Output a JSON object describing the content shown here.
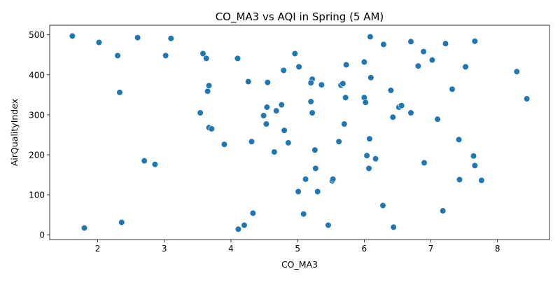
{
  "chart_data": {
    "type": "scatter",
    "title": "CO_MA3 vs AQI in Spring (5 AM)",
    "xlabel": "CO_MA3",
    "ylabel": "AirQualityIndex",
    "xlim": [
      1.28,
      8.78
    ],
    "ylim": [
      -12,
      524
    ],
    "xticks": [
      2,
      3,
      4,
      5,
      6,
      7,
      8
    ],
    "yticks": [
      0,
      100,
      200,
      300,
      400,
      500
    ],
    "grid": false,
    "legend": "none",
    "marker_color": "#1f77b4",
    "marker_edge_color": "#ffffff",
    "points": [
      {
        "x": 1.62,
        "y": 497
      },
      {
        "x": 2.02,
        "y": 481
      },
      {
        "x": 2.3,
        "y": 448
      },
      {
        "x": 2.33,
        "y": 356
      },
      {
        "x": 2.6,
        "y": 493
      },
      {
        "x": 3.02,
        "y": 448
      },
      {
        "x": 3.1,
        "y": 491
      },
      {
        "x": 3.58,
        "y": 453
      },
      {
        "x": 3.63,
        "y": 441
      },
      {
        "x": 3.65,
        "y": 359
      },
      {
        "x": 3.67,
        "y": 373
      },
      {
        "x": 3.54,
        "y": 305
      },
      {
        "x": 3.67,
        "y": 268
      },
      {
        "x": 3.71,
        "y": 265
      },
      {
        "x": 3.9,
        "y": 226
      },
      {
        "x": 2.7,
        "y": 185
      },
      {
        "x": 2.86,
        "y": 176
      },
      {
        "x": 1.8,
        "y": 17
      },
      {
        "x": 2.36,
        "y": 31
      },
      {
        "x": 4.1,
        "y": 441
      },
      {
        "x": 4.26,
        "y": 383
      },
      {
        "x": 4.55,
        "y": 381
      },
      {
        "x": 4.79,
        "y": 411
      },
      {
        "x": 4.96,
        "y": 453
      },
      {
        "x": 5.02,
        "y": 420
      },
      {
        "x": 5.22,
        "y": 389
      },
      {
        "x": 5.2,
        "y": 380
      },
      {
        "x": 5.36,
        "y": 375
      },
      {
        "x": 4.54,
        "y": 319
      },
      {
        "x": 4.76,
        "y": 325
      },
      {
        "x": 4.68,
        "y": 310
      },
      {
        "x": 4.49,
        "y": 298
      },
      {
        "x": 4.53,
        "y": 277
      },
      {
        "x": 4.8,
        "y": 261
      },
      {
        "x": 4.86,
        "y": 230
      },
      {
        "x": 4.31,
        "y": 233
      },
      {
        "x": 4.65,
        "y": 207
      },
      {
        "x": 5.2,
        "y": 333
      },
      {
        "x": 5.22,
        "y": 305
      },
      {
        "x": 5.26,
        "y": 212
      },
      {
        "x": 5.27,
        "y": 166
      },
      {
        "x": 5.12,
        "y": 139
      },
      {
        "x": 5.01,
        "y": 108
      },
      {
        "x": 5.3,
        "y": 108
      },
      {
        "x": 5.09,
        "y": 52
      },
      {
        "x": 4.33,
        "y": 54
      },
      {
        "x": 4.2,
        "y": 24
      },
      {
        "x": 4.11,
        "y": 14
      },
      {
        "x": 5.46,
        "y": 24
      },
      {
        "x": 5.52,
        "y": 135
      },
      {
        "x": 5.53,
        "y": 139
      },
      {
        "x": 5.62,
        "y": 233
      },
      {
        "x": 5.65,
        "y": 374
      },
      {
        "x": 5.68,
        "y": 378
      },
      {
        "x": 5.72,
        "y": 343
      },
      {
        "x": 5.73,
        "y": 425
      },
      {
        "x": 5.7,
        "y": 277
      },
      {
        "x": 6.09,
        "y": 495
      },
      {
        "x": 6.29,
        "y": 476
      },
      {
        "x": 6.0,
        "y": 432
      },
      {
        "x": 6.1,
        "y": 393
      },
      {
        "x": 6.0,
        "y": 343
      },
      {
        "x": 6.02,
        "y": 331
      },
      {
        "x": 6.4,
        "y": 361
      },
      {
        "x": 6.43,
        "y": 294
      },
      {
        "x": 6.52,
        "y": 319
      },
      {
        "x": 6.56,
        "y": 323
      },
      {
        "x": 6.08,
        "y": 240
      },
      {
        "x": 6.04,
        "y": 198
      },
      {
        "x": 6.17,
        "y": 190
      },
      {
        "x": 6.07,
        "y": 166
      },
      {
        "x": 6.28,
        "y": 73
      },
      {
        "x": 6.44,
        "y": 19
      },
      {
        "x": 6.7,
        "y": 483
      },
      {
        "x": 6.89,
        "y": 458
      },
      {
        "x": 6.81,
        "y": 422
      },
      {
        "x": 7.02,
        "y": 437
      },
      {
        "x": 7.22,
        "y": 478
      },
      {
        "x": 7.52,
        "y": 420
      },
      {
        "x": 7.66,
        "y": 484
      },
      {
        "x": 6.7,
        "y": 305
      },
      {
        "x": 7.1,
        "y": 289
      },
      {
        "x": 7.32,
        "y": 364
      },
      {
        "x": 7.42,
        "y": 238
      },
      {
        "x": 7.64,
        "y": 197
      },
      {
        "x": 7.66,
        "y": 173
      },
      {
        "x": 6.9,
        "y": 180
      },
      {
        "x": 7.43,
        "y": 138
      },
      {
        "x": 7.76,
        "y": 136
      },
      {
        "x": 7.18,
        "y": 60
      },
      {
        "x": 8.29,
        "y": 408
      },
      {
        "x": 8.44,
        "y": 340
      }
    ]
  }
}
